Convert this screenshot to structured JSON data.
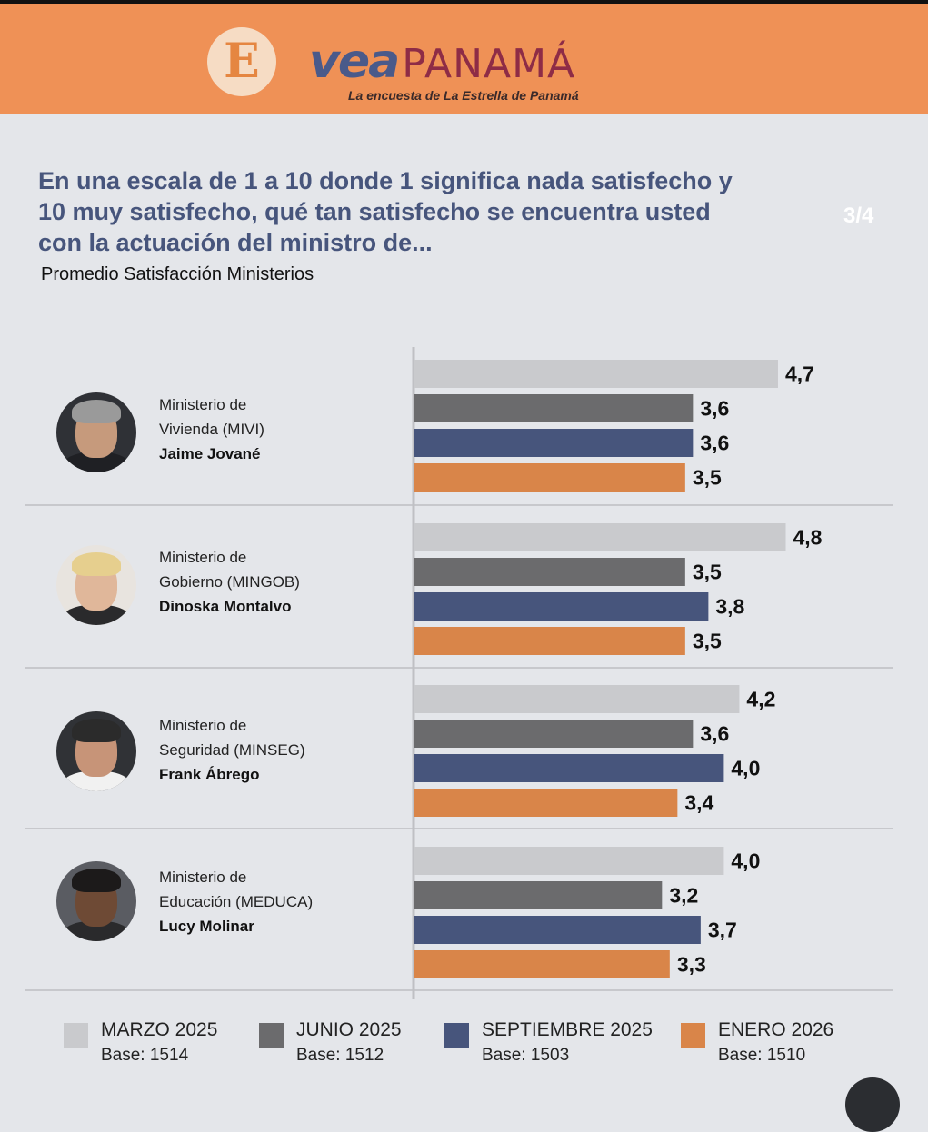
{
  "header": {
    "logo_letter": "E",
    "brand_vea": "vea",
    "brand_panama": "PANAMÁ",
    "tagline": "La encuesta de La Estrella de Panamá",
    "colors": {
      "band": "#ef9156",
      "vea": "#4a5a8a",
      "panama": "#8e2c46"
    }
  },
  "question": "En una escala de 1 a 10 donde 1 significa nada satisfecho y 10 muy satisfecho, qué tan satisfecho se encuentra usted con la actuación del ministro de...",
  "page_indicator": "3/4",
  "subtitle": "Promedio Satisfacción Ministerios",
  "chart_data": {
    "type": "bar",
    "orientation": "horizontal",
    "categories": [
      {
        "ministry_line1": "Ministerio de",
        "ministry_line2": "Vivienda (MIVI)",
        "minister": "Jaime Jované",
        "avatar_icon": "portrait-man-glasses-icon"
      },
      {
        "ministry_line1": "Ministerio de",
        "ministry_line2": "Gobierno (MINGOB)",
        "minister": "Dinoska Montalvo",
        "avatar_icon": "portrait-woman-blonde-icon"
      },
      {
        "ministry_line1": "Ministerio de",
        "ministry_line2": "Seguridad (MINSEG)",
        "minister": "Frank Ábrego",
        "avatar_icon": "portrait-man-glasses-icon"
      },
      {
        "ministry_line1": "Ministerio de",
        "ministry_line2": "Educación (MEDUCA)",
        "minister": "Lucy Molinar",
        "avatar_icon": "portrait-woman-icon"
      }
    ],
    "series": [
      {
        "name": "MARZO 2025",
        "base": "Base: 1514",
        "color": "#c9cacd",
        "values": [
          4.7,
          4.8,
          4.2,
          4.0
        ],
        "labels": [
          "4,7",
          "4,8",
          "4,2",
          "4,0"
        ]
      },
      {
        "name": "JUNIO 2025",
        "base": "Base: 1512",
        "color": "#6b6b6d",
        "values": [
          3.6,
          3.5,
          3.6,
          3.2
        ],
        "labels": [
          "3,6",
          "3,5",
          "3,6",
          "3,2"
        ]
      },
      {
        "name": "SEPTIEMBRE 2025",
        "base": "Base: 1503",
        "color": "#47557c",
        "values": [
          3.6,
          3.8,
          4.0,
          3.7
        ],
        "labels": [
          "3,6",
          "3,8",
          "4,0",
          "3,7"
        ]
      },
      {
        "name": "ENERO 2026",
        "base": "Base: 1510",
        "color": "#d98549",
        "values": [
          3.5,
          3.5,
          3.4,
          3.3
        ],
        "labels": [
          "3,5",
          "3,5",
          "3,4",
          "3,3"
        ]
      }
    ],
    "xlim": [
      0,
      10
    ],
    "grid": false,
    "legend": "bottom"
  }
}
